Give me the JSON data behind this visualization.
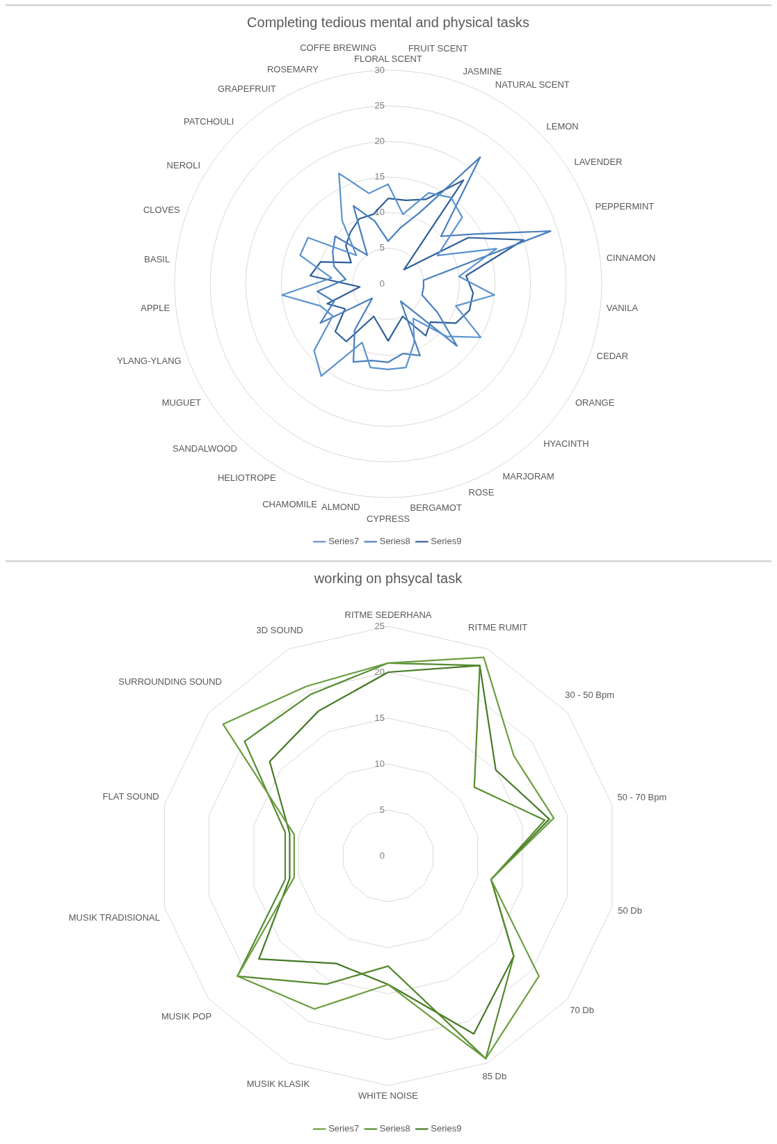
{
  "chart_data": [
    {
      "type": "radar",
      "title": "Completing tedious mental and physical tasks",
      "categories": [
        "FLORAL SCENT",
        "FRUIT SCENT",
        "JASMINE",
        "NATURAL SCENT",
        "LEMON",
        "LAVENDER",
        "PEPPERMINT",
        "CINNAMON",
        "VANILA",
        "CEDAR",
        "ORANGE",
        "HYACINTH",
        "MARJORAM",
        "ROSE",
        "BERGAMOT",
        "CYPRESS",
        "ALMOND",
        "CHAMOMILE",
        "HELIOTROPE",
        "SANDALWOOD",
        "MUGUET",
        "YLANG-YLANG",
        "APPLE",
        "BASIL",
        "CLOVES",
        "NEROLI",
        "PATCHOULI",
        "GRAPEFRUIT",
        "ROSEMARY",
        "COFFE BREWING"
      ],
      "series": [
        {
          "name": "Series7",
          "color": "#5b93cf",
          "values": [
            14,
            10,
            14,
            15,
            14,
            8,
            16,
            10,
            15,
            10,
            15,
            11,
            6,
            9,
            12,
            12,
            12,
            9,
            16,
            14,
            9,
            10,
            15,
            8,
            13,
            13,
            6,
            11,
            17,
            13
          ]
        },
        {
          "name": "Series8",
          "color": "#4a7fbf",
          "values": [
            6,
            8,
            11,
            22,
            10,
            14,
            24,
            5,
            5,
            5,
            8,
            13,
            3,
            11,
            10,
            11,
            11,
            12,
            8,
            3,
            11,
            8,
            10,
            6,
            8,
            9,
            10,
            5,
            12,
            9
          ]
        },
        {
          "name": "Series9",
          "color": "#2f5f99",
          "values": [
            12,
            12,
            13,
            18,
            3,
            13,
            20,
            11,
            12,
            12,
            11,
            8,
            9,
            5,
            6,
            8,
            6,
            5,
            10,
            10,
            7,
            9,
            4,
            11,
            10,
            6,
            8,
            9,
            10,
            10
          ]
        }
      ],
      "ylim": [
        0,
        30
      ],
      "yticks": [
        0,
        5,
        10,
        15,
        20,
        25,
        30
      ],
      "grid": true,
      "legend": "bottom",
      "marker": "none",
      "line_style": "solid"
    },
    {
      "type": "radar",
      "title": "working on phsycal task",
      "categories": [
        "RITME SEDERHANA",
        "RITME RUMIT",
        "30 - 50 Bpm",
        "50 - 70 Bpm",
        "50 Db",
        "70 Db",
        "85 Db",
        "WHITE NOISE",
        "MUSIK KLASIK",
        "MUSIK POP",
        "MUSIK TRADISIONAL",
        "FLAT SOUND",
        "SURROUNDING SOUND",
        "3D SOUND"
      ],
      "series": [
        {
          "name": "Series7",
          "color": "#6a9e3f",
          "values": [
            21,
            24,
            17.5,
            18.5,
            11.5,
            21,
            24.5,
            14,
            18.5,
            21,
            10.5,
            10.5,
            23,
            20.5
          ]
        },
        {
          "name": "Series8",
          "color": "#558b2f",
          "values": [
            21,
            23,
            12,
            17.5,
            11.5,
            17.5,
            24.5,
            12,
            15.5,
            21,
            11.5,
            11.5,
            20,
            19.5
          ]
        },
        {
          "name": "Series9",
          "color": "#447a25",
          "values": [
            20,
            23,
            15,
            18,
            11.5,
            17.5,
            21.5,
            14,
            13,
            18,
            11,
            11,
            16.5,
            17.5
          ]
        }
      ],
      "ylim": [
        0,
        25
      ],
      "yticks": [
        0,
        5,
        10,
        15,
        20,
        25
      ],
      "grid": true,
      "legend": "bottom",
      "marker": "none",
      "line_style": "solid"
    }
  ]
}
